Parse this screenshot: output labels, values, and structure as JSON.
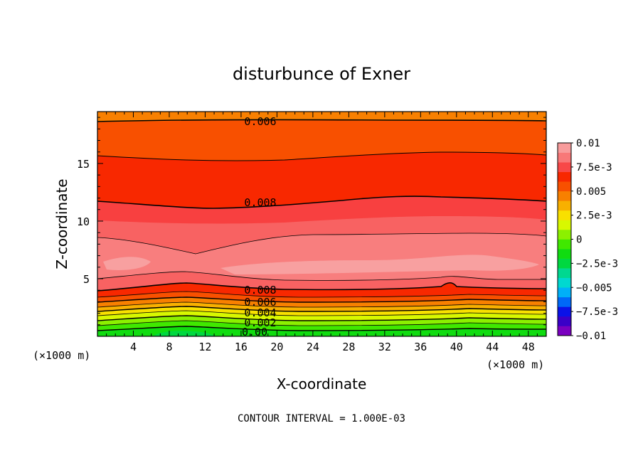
{
  "chart_data": {
    "type": "heatmap",
    "title": "disturbunce of Exner",
    "xlabel": "X-coordinate",
    "ylabel": "Z-coordinate",
    "x_unit": "(×1000 m)",
    "z_unit": "(×1000 m)",
    "xlim": [
      0,
      50
    ],
    "ylim": [
      0,
      19.5
    ],
    "x_ticks": [
      "4",
      "8",
      "12",
      "16",
      "20",
      "24",
      "28",
      "32",
      "36",
      "40",
      "44",
      "48"
    ],
    "y_ticks": [
      "5",
      "10",
      "15"
    ],
    "colorbar": {
      "labels": [
        "0.01",
        "7.5e-3",
        "0.005",
        "2.5e-3",
        "0",
        "−2.5e-3",
        "−0.005",
        "−7.5e-3",
        "−0.01"
      ],
      "colors": [
        "#7a00c0",
        "#3a00c8",
        "#0a12e8",
        "#0068f8",
        "#00b0f8",
        "#00d8d0",
        "#00d890",
        "#00d840",
        "#10dc10",
        "#40e800",
        "#8cf000",
        "#d8f800",
        "#f8e000",
        "#f8b000",
        "#f88000",
        "#f85000",
        "#f82800",
        "#f84848",
        "#f87878",
        "#f89c9c"
      ]
    },
    "contour_labels": [
      "0.006",
      "0.008",
      "0.008",
      "0.006",
      "0.004",
      "0.002",
      "0.00"
    ],
    "contour_interval": "CONTOUR INTERVAL = 1.000E-03",
    "grid": false
  }
}
